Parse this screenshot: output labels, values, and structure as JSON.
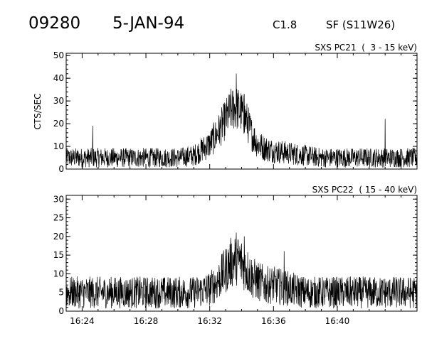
{
  "header": {
    "event_id": "09280",
    "date": "5-JAN-94",
    "goes_class": "C1.8",
    "location": "SF (S11W26)"
  },
  "colors": {
    "foreground": "#000000",
    "background": "#ffffff"
  },
  "chart_data": [
    {
      "type": "line",
      "title": "SXS PC21  (  3 - 15 keV)",
      "xlabel": "",
      "ylabel": "CTS/SEC",
      "xlim": [
        "16:23:00",
        "16:45:00"
      ],
      "ylim": [
        0,
        51
      ],
      "yticks": [
        0,
        10,
        20,
        30,
        40,
        50
      ],
      "xticks": [
        "16:24",
        "16:28",
        "16:32",
        "16:36",
        "16:40"
      ],
      "show_xtick_labels": false,
      "grid": false,
      "series": [
        {
          "times": [
            "16:23:00",
            "16:24:00",
            "16:25:00",
            "16:26:00",
            "16:27:00",
            "16:28:00",
            "16:29:00",
            "16:30:00",
            "16:31:00",
            "16:32:00",
            "16:32:30",
            "16:33:00",
            "16:33:20",
            "16:33:40",
            "16:34:00",
            "16:34:20",
            "16:34:40",
            "16:35:00",
            "16:35:30",
            "16:36:00",
            "16:37:00",
            "16:38:00",
            "16:39:00",
            "16:40:00",
            "16:41:00",
            "16:42:00",
            "16:43:00",
            "16:44:00",
            "16:45:00"
          ],
          "values": [
            5,
            5,
            5,
            5,
            5,
            5,
            5,
            5,
            6,
            11,
            16,
            22,
            26,
            27,
            25,
            21,
            15,
            11,
            9,
            8,
            7,
            6,
            5,
            5,
            5,
            5,
            5,
            5,
            5
          ],
          "spikes": [
            {
              "time": "16:24:40",
              "value": 19
            },
            {
              "time": "16:33:40",
              "value": 42
            },
            {
              "time": "16:34:10",
              "value": 33
            },
            {
              "time": "16:43:00",
              "value": 22
            }
          ]
        }
      ]
    },
    {
      "type": "line",
      "title": "SXS PC22  ( 15 - 40 keV)",
      "xlabel": "",
      "ylabel": "",
      "xlim": [
        "16:23:00",
        "16:45:00"
      ],
      "ylim": [
        0,
        31
      ],
      "yticks": [
        0,
        5,
        10,
        15,
        20,
        25,
        30
      ],
      "xticks": [
        "16:24",
        "16:28",
        "16:32",
        "16:36",
        "16:40"
      ],
      "show_xtick_labels": true,
      "grid": false,
      "series": [
        {
          "times": [
            "16:23:00",
            "16:24:00",
            "16:25:00",
            "16:26:00",
            "16:27:00",
            "16:28:00",
            "16:29:00",
            "16:30:00",
            "16:31:00",
            "16:32:00",
            "16:32:30",
            "16:33:00",
            "16:33:20",
            "16:33:40",
            "16:34:00",
            "16:34:20",
            "16:34:40",
            "16:35:00",
            "16:35:30",
            "16:36:00",
            "16:37:00",
            "16:38:00",
            "16:39:00",
            "16:40:00",
            "16:41:00",
            "16:42:00",
            "16:43:00",
            "16:44:00",
            "16:45:00"
          ],
          "values": [
            5,
            5,
            5,
            5,
            5,
            5,
            5,
            5,
            5,
            6,
            8,
            11,
            13,
            14,
            13,
            11,
            9,
            8,
            7,
            7,
            6,
            5,
            5,
            5,
            5,
            5,
            5,
            5,
            5
          ],
          "spikes": [
            {
              "time": "16:33:40",
              "value": 21
            },
            {
              "time": "16:34:10",
              "value": 20
            },
            {
              "time": "16:36:40",
              "value": 16
            }
          ]
        }
      ]
    }
  ]
}
